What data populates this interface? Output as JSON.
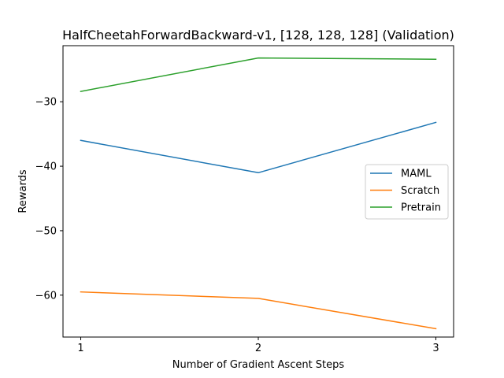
{
  "chart_data": {
    "type": "line",
    "title": "HalfCheetahForwardBackward-v1, [128, 128, 128] (Validation)",
    "xlabel": "Number of Gradient Ascent Steps",
    "ylabel": "Rewards",
    "x": [
      1,
      2,
      3
    ],
    "xticks": [
      1,
      2,
      3
    ],
    "xlim": [
      0.9,
      3.1
    ],
    "yticks": [
      -60,
      -50,
      -40,
      -30
    ],
    "ytick_labels": [
      "−60",
      "−50",
      "−40",
      "−30"
    ],
    "ylim": [
      -66.5,
      -21.3
    ],
    "grid": false,
    "legend_position": "center-right",
    "series": [
      {
        "name": "MAML",
        "color": "#1f77b4",
        "values": [
          -36.0,
          -41.0,
          -33.2
        ]
      },
      {
        "name": "Scratch",
        "color": "#ff7f0e",
        "values": [
          -59.5,
          -60.5,
          -65.2
        ]
      },
      {
        "name": "Pretrain",
        "color": "#2ca02c",
        "values": [
          -28.4,
          -23.2,
          -23.4
        ]
      }
    ]
  }
}
